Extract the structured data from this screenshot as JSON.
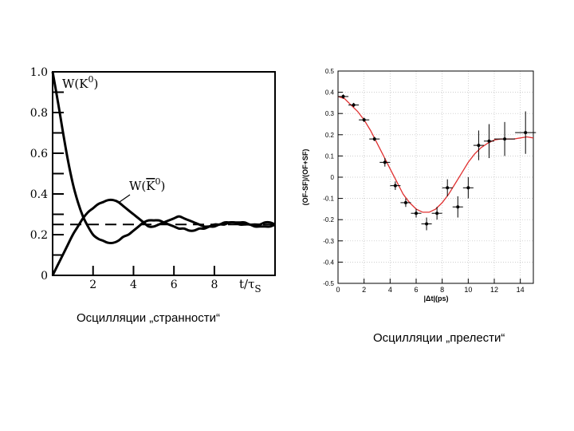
{
  "captions": {
    "left": "Осцилляции „странности“",
    "right": "Осцилляции „прелести“"
  },
  "chart_data": [
    {
      "type": "line",
      "xlim": [
        0,
        11
      ],
      "ylim": [
        0,
        1.0
      ],
      "yticks": [
        "0",
        "0.2",
        "0.4",
        "0.6",
        "0.8",
        "1.0"
      ],
      "ytick_values": [
        0,
        0.2,
        0.4,
        0.6,
        0.8,
        1.0
      ],
      "xticks": [
        "2",
        "4",
        "6",
        "8"
      ],
      "xtick_values": [
        2,
        4,
        6,
        8
      ],
      "xlabel_main": "t/τ",
      "xlabel_sub": "S",
      "series": [
        {
          "name": "W(K⁰)",
          "label_main": "W(K",
          "label_sup": "0",
          "label_close": ")",
          "x": [
            0,
            0.25,
            0.5,
            0.75,
            1,
            1.25,
            1.5,
            1.75,
            2,
            2.25,
            2.5,
            2.75,
            3,
            3.25,
            3.5,
            3.75,
            4,
            4.25,
            4.5,
            4.75,
            5,
            5.25,
            5.5,
            5.75,
            6,
            6.25,
            6.5,
            6.75,
            7,
            7.25,
            7.5,
            7.75,
            8,
            8.25,
            8.5,
            8.75,
            9,
            9.25,
            9.5,
            9.75,
            10,
            10.25,
            10.5,
            10.75,
            11
          ],
          "y": [
            1.0,
            0.86,
            0.71,
            0.57,
            0.45,
            0.36,
            0.29,
            0.24,
            0.2,
            0.18,
            0.17,
            0.16,
            0.16,
            0.17,
            0.19,
            0.2,
            0.22,
            0.24,
            0.26,
            0.27,
            0.27,
            0.27,
            0.26,
            0.25,
            0.24,
            0.23,
            0.23,
            0.22,
            0.22,
            0.23,
            0.23,
            0.24,
            0.25,
            0.25,
            0.26,
            0.26,
            0.26,
            0.25,
            0.25,
            0.25,
            0.24,
            0.24,
            0.24,
            0.24,
            0.25
          ]
        },
        {
          "name": "W(K̄⁰)",
          "label_main": "W(",
          "label_bar": "K",
          "label_sup": "0",
          "label_close": ")",
          "x": [
            0,
            0.25,
            0.5,
            0.75,
            1,
            1.25,
            1.5,
            1.75,
            2,
            2.25,
            2.5,
            2.75,
            3,
            3.25,
            3.5,
            3.75,
            4,
            4.25,
            4.5,
            4.75,
            5,
            5.25,
            5.5,
            5.75,
            6,
            6.25,
            6.5,
            6.75,
            7,
            7.25,
            7.5,
            7.75,
            8,
            8.25,
            8.5,
            8.75,
            9,
            9.25,
            9.5,
            9.75,
            10,
            10.25,
            10.5,
            10.75,
            11
          ],
          "y": [
            0.0,
            0.05,
            0.1,
            0.15,
            0.2,
            0.24,
            0.28,
            0.31,
            0.33,
            0.35,
            0.36,
            0.37,
            0.37,
            0.36,
            0.34,
            0.32,
            0.3,
            0.28,
            0.26,
            0.24,
            0.24,
            0.25,
            0.26,
            0.27,
            0.28,
            0.29,
            0.28,
            0.27,
            0.26,
            0.25,
            0.24,
            0.24,
            0.24,
            0.25,
            0.25,
            0.26,
            0.26,
            0.26,
            0.26,
            0.25,
            0.25,
            0.25,
            0.26,
            0.26,
            0.25
          ]
        }
      ],
      "reference_line": {
        "y": 0.25,
        "style": "dashed"
      }
    },
    {
      "type": "scatter",
      "xlabel": "|Δt|(ps)",
      "ylabel": "(OF-SF)/(OF+SF)",
      "xlim": [
        0,
        15
      ],
      "ylim": [
        -0.5,
        0.5
      ],
      "xticks": [
        0,
        2,
        4,
        6,
        8,
        10,
        12,
        14
      ],
      "yticks": [
        -0.5,
        -0.4,
        -0.3,
        -0.2,
        -0.1,
        0,
        0.1,
        0.2,
        0.3,
        0.4,
        0.5
      ],
      "grid": true,
      "series": [
        {
          "name": "data",
          "x": [
            0.4,
            1.2,
            2.0,
            2.8,
            3.6,
            4.4,
            5.2,
            6.0,
            6.8,
            7.6,
            8.4,
            9.2,
            10.0,
            10.8,
            11.6,
            12.8,
            14.4
          ],
          "y": [
            0.38,
            0.34,
            0.27,
            0.18,
            0.07,
            -0.04,
            -0.12,
            -0.17,
            -0.22,
            -0.17,
            -0.05,
            -0.14,
            -0.05,
            0.15,
            0.17,
            0.18,
            0.21
          ],
          "xerr": [
            0.4,
            0.4,
            0.4,
            0.4,
            0.4,
            0.4,
            0.4,
            0.4,
            0.4,
            0.4,
            0.4,
            0.4,
            0.4,
            0.4,
            0.4,
            0.8,
            0.8
          ],
          "yerr": [
            0.01,
            0.01,
            0.01,
            0.01,
            0.02,
            0.02,
            0.02,
            0.02,
            0.03,
            0.03,
            0.04,
            0.05,
            0.05,
            0.07,
            0.08,
            0.08,
            0.1
          ]
        },
        {
          "name": "fit",
          "color": "#e03030",
          "x": [
            0,
            0.5,
            1,
            1.5,
            2,
            2.5,
            3,
            3.5,
            4,
            4.5,
            5,
            5.5,
            6,
            6.5,
            7,
            7.5,
            8,
            8.5,
            9,
            9.5,
            10,
            10.5,
            11,
            11.5,
            12,
            12.5,
            13,
            13.5,
            14,
            14.5,
            15
          ],
          "y": [
            0.38,
            0.37,
            0.34,
            0.31,
            0.27,
            0.22,
            0.16,
            0.1,
            0.04,
            -0.02,
            -0.08,
            -0.12,
            -0.15,
            -0.165,
            -0.165,
            -0.15,
            -0.12,
            -0.08,
            -0.03,
            0.02,
            0.07,
            0.11,
            0.14,
            0.16,
            0.175,
            0.18,
            0.18,
            0.18,
            0.185,
            0.19,
            0.185
          ]
        }
      ]
    }
  ]
}
